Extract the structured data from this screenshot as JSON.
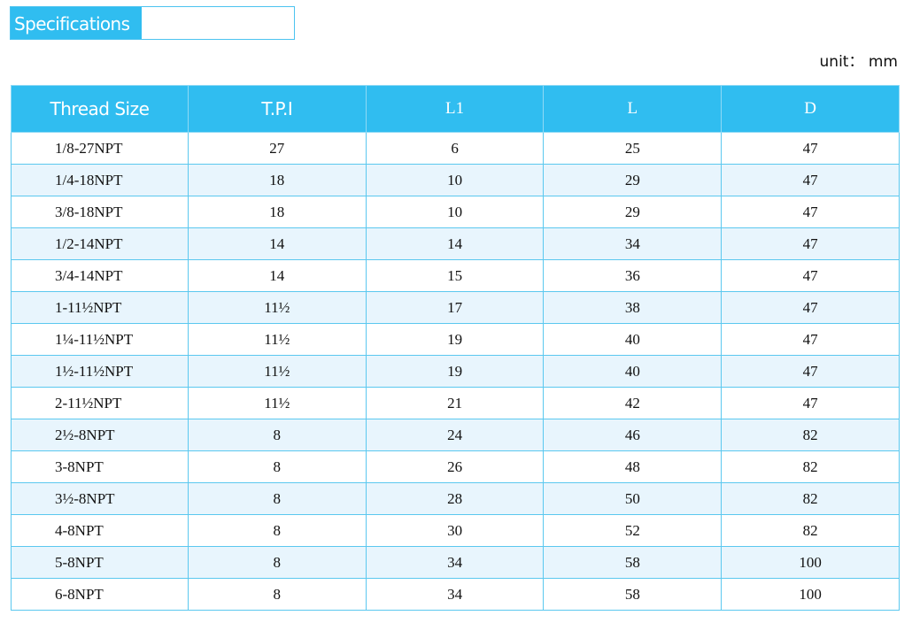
{
  "title": "Specifications",
  "unit": "unit： mm",
  "colors": {
    "accent": "#30bdf0",
    "row_alt": "#e8f5fd"
  },
  "headers": [
    "Thread Size",
    "T.P.I",
    "L1",
    "L",
    "D"
  ],
  "rows": [
    [
      "1/8-27NPT",
      "27",
      "6",
      "25",
      "47"
    ],
    [
      "1/4-18NPT",
      "18",
      "10",
      "29",
      "47"
    ],
    [
      "3/8-18NPT",
      "18",
      "10",
      "29",
      "47"
    ],
    [
      "1/2-14NPT",
      "14",
      "14",
      "34",
      "47"
    ],
    [
      "3/4-14NPT",
      "14",
      "15",
      "36",
      "47"
    ],
    [
      "1-11½NPT",
      "11½",
      "17",
      "38",
      "47"
    ],
    [
      "1¼-11½NPT",
      "11½",
      "19",
      "40",
      "47"
    ],
    [
      "1½-11½NPT",
      "11½",
      "19",
      "40",
      "47"
    ],
    [
      "2-11½NPT",
      "11½",
      "21",
      "42",
      "47"
    ],
    [
      "2½-8NPT",
      "8",
      "24",
      "46",
      "82"
    ],
    [
      "3-8NPT",
      "8",
      "26",
      "48",
      "82"
    ],
    [
      "3½-8NPT",
      "8",
      "28",
      "50",
      "82"
    ],
    [
      "4-8NPT",
      "8",
      "30",
      "52",
      "82"
    ],
    [
      "5-8NPT",
      "8",
      "34",
      "58",
      "100"
    ],
    [
      "6-8NPT",
      "8",
      "34",
      "58",
      "100"
    ]
  ]
}
